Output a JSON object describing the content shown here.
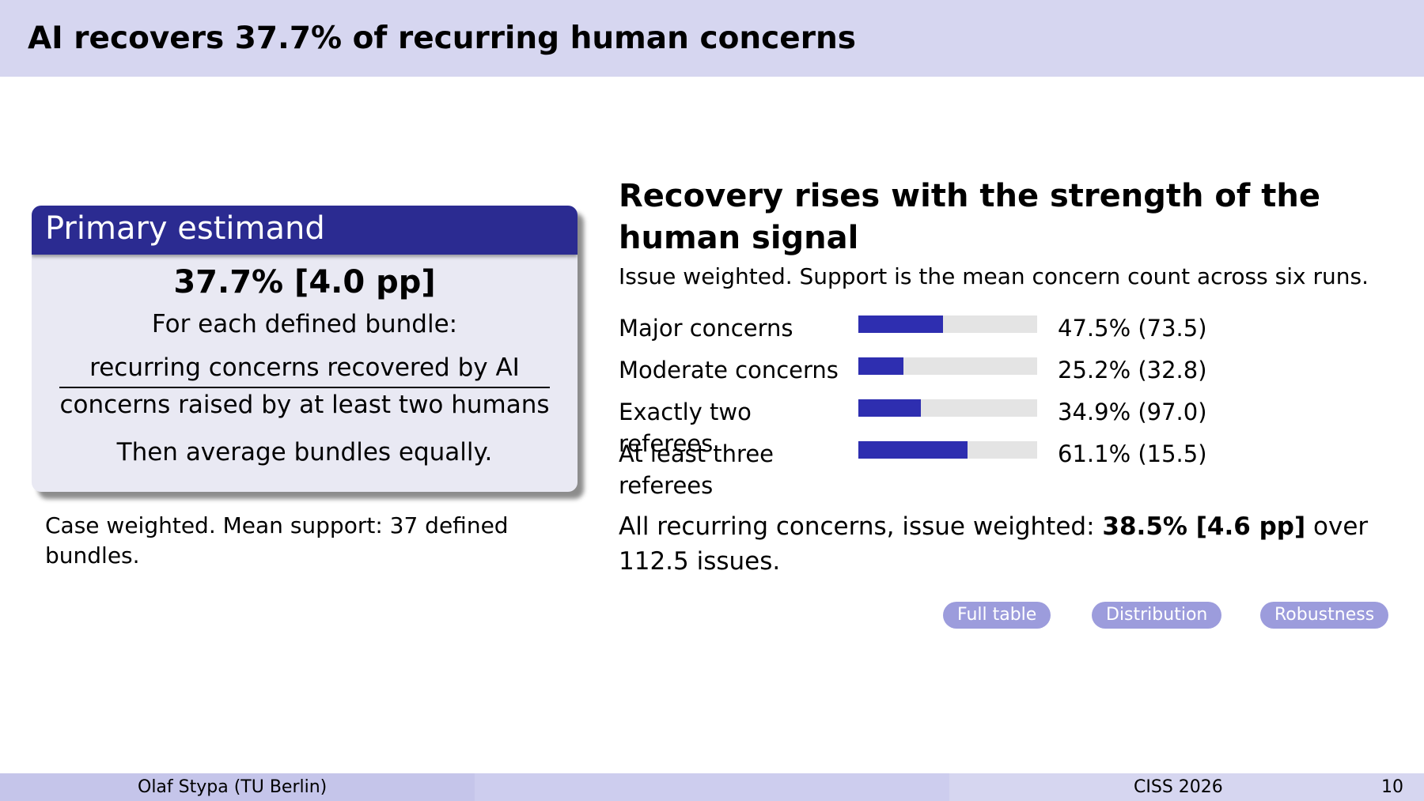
{
  "header": {
    "title": "AI recovers 37.7% of recurring human concerns"
  },
  "primary_block": {
    "title": "Primary estimand",
    "estimate": "37.7% [4.0 pp]",
    "each_bundle": "For each defined bundle:",
    "numerator": "recurring concerns recovered by AI",
    "denominator": "concerns raised by at least two humans",
    "averaging": "Then average bundles equally."
  },
  "case_note": "Case weighted. Mean support: 37 defined bundles.",
  "recovery": {
    "title": "Recovery rises with the strength of the human signal",
    "subtitle": "Issue weighted. Support is the mean concern count across six runs.",
    "bars": [
      {
        "label": "Major concerns",
        "value_text": "47.5% (73.5)",
        "fraction": 0.475
      },
      {
        "label": "Moderate concerns",
        "value_text": "25.2% (32.8)",
        "fraction": 0.252
      },
      {
        "label": "Exactly two referees",
        "value_text": "34.9% (97.0)",
        "fraction": 0.349
      },
      {
        "label": "At least three referees",
        "value_text": "61.1% (15.5)",
        "fraction": 0.611
      }
    ],
    "summary_prefix": "All recurring concerns, issue weighted:",
    "summary_value": "38.5% [4.6 pp]",
    "summary_suffix": "over 112.5 issues."
  },
  "links": {
    "full_table": "Full table",
    "distribution": "Distribution",
    "robustness": "Robustness"
  },
  "colors": {
    "header_bg": "#d6d6f0",
    "block_title_bg": "#2b2b91",
    "bar_fill": "#2e2eb0",
    "pill_bg": "#9c9cdc"
  },
  "footer": {
    "author": "Olaf Stypa  (TU Berlin)",
    "event": "CISS 2026",
    "page": "10"
  }
}
